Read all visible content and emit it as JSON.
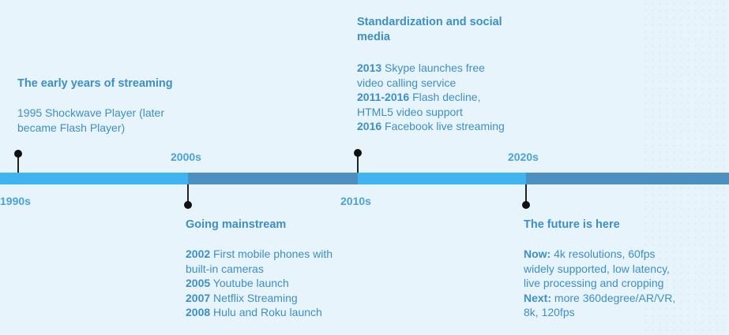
{
  "decades": [
    "1990s",
    "2000s",
    "2010s",
    "2020s"
  ],
  "events": [
    {
      "title": "The early years of streaming",
      "lines": [
        {
          "bold": "",
          "text": "1995 Shockwave Player (later"
        },
        {
          "bold": "",
          "text": "became Flash Player)"
        }
      ]
    },
    {
      "title": "Going mainstream",
      "lines": [
        {
          "bold": "2002",
          "text": " First mobile phones with"
        },
        {
          "bold": "",
          "text": "built-in cameras"
        },
        {
          "bold": "2005",
          "text": " Youtube launch"
        },
        {
          "bold": "2007",
          "text": " Netflix Streaming"
        },
        {
          "bold": "2008",
          "text": " Hulu and Roku launch"
        }
      ]
    },
    {
      "title_lines": [
        "Standardization and social",
        "media"
      ],
      "lines": [
        {
          "bold": "2013",
          "text": " Skype launches free"
        },
        {
          "bold": "",
          "text": "video calling service"
        },
        {
          "bold": "2011-2016",
          "text": " Flash decline,"
        },
        {
          "bold": "",
          "text": "HTML5 video support"
        },
        {
          "bold": "2016",
          "text": " Facebook live streaming"
        }
      ]
    },
    {
      "title": "The future is here",
      "lines": [
        {
          "bold": "Now:",
          "text": " 4k resolutions, 60fps"
        },
        {
          "bold": "",
          "text": "widely supported, low latency,"
        },
        {
          "bold": "",
          "text": "live processing and cropping"
        },
        {
          "bold": "Next:",
          "text": " more 360degree/AR/VR,"
        },
        {
          "bold": "",
          "text": "8k, 120fps"
        }
      ]
    }
  ],
  "colors": {
    "background": "#e8f4fc",
    "bar_light": "#40b3f1",
    "bar_dark": "#4b90bf",
    "text": "#3d8fc4"
  }
}
